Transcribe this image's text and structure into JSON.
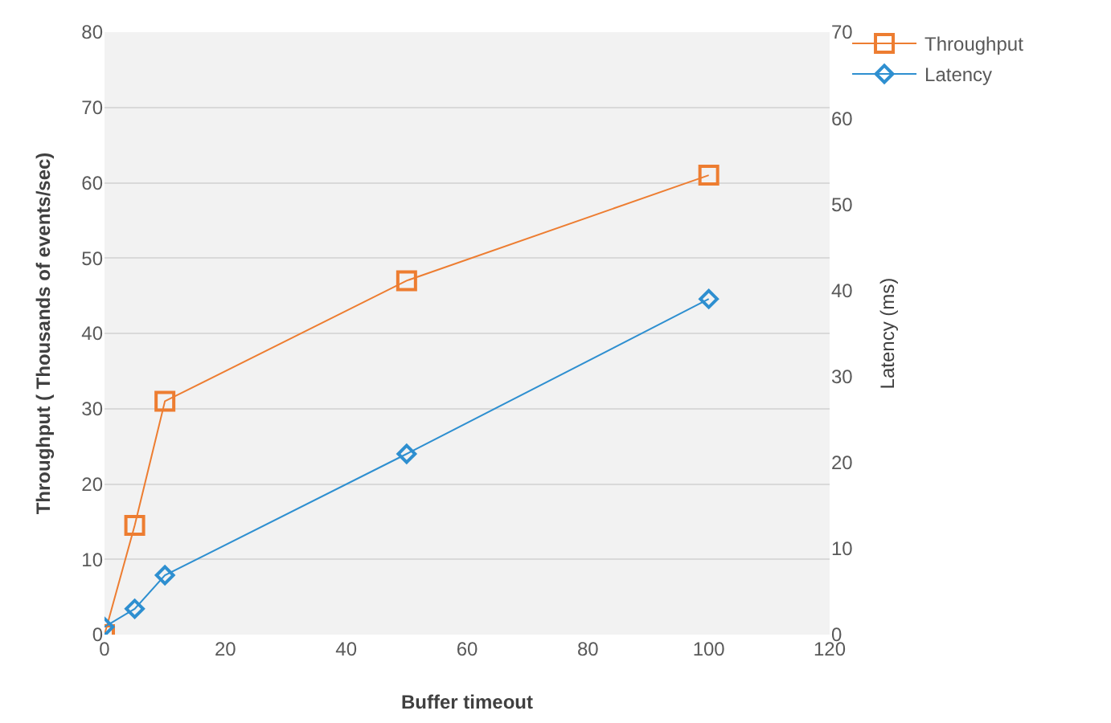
{
  "chart_data": {
    "type": "line",
    "xlabel": "Buffer timeout",
    "ylabel": "Throughput ( Thousands of events/sec)",
    "y2label": "Latency (ms)",
    "x": [
      0,
      5,
      10,
      50,
      100
    ],
    "series": [
      {
        "name": "Throughput",
        "color": "#ed7d31",
        "values": [
          0,
          14.5,
          31,
          47,
          61
        ],
        "marker": "square"
      },
      {
        "name": "Latency",
        "color": "#2e8fd0",
        "values": [
          0.9,
          3,
          6.9,
          21,
          39
        ],
        "marker": "diamond",
        "axis": "y2"
      }
    ],
    "xlim": [
      0,
      120
    ],
    "xticks": [
      0,
      20,
      40,
      60,
      80,
      100,
      120
    ],
    "ylim": [
      0,
      80
    ],
    "yticks": [
      0,
      10,
      20,
      30,
      40,
      50,
      60,
      70,
      80
    ],
    "y2lim": [
      0,
      70
    ],
    "y2ticks": [
      0,
      10,
      20,
      30,
      40,
      50,
      60,
      70
    ],
    "grid": "y",
    "legend": "top right",
    "line_style": "solid"
  }
}
